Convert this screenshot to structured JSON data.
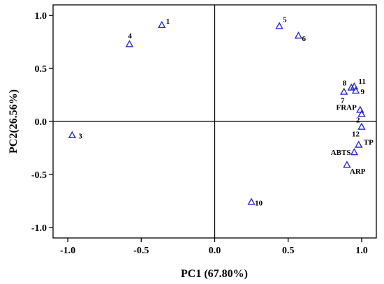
{
  "chart_data": {
    "type": "scatter",
    "xlabel": "PC1 (67.80%)",
    "ylabel": "PC2(26.56%)",
    "xlim": [
      -1.1,
      1.1
    ],
    "ylim": [
      -1.1,
      1.1
    ],
    "x_ticks": [
      {
        "value": -1.0,
        "label": "-1.0"
      },
      {
        "value": -0.5,
        "label": "-0.5"
      },
      {
        "value": 0.0,
        "label": "0.0"
      },
      {
        "value": 0.5,
        "label": "0.5"
      },
      {
        "value": 1.0,
        "label": "1.0"
      }
    ],
    "y_ticks": [
      {
        "value": 1.0,
        "label": "1.0"
      },
      {
        "value": 0.5,
        "label": "0.5"
      },
      {
        "value": 0.0,
        "label": "0.0"
      },
      {
        "value": -0.5,
        "label": "-0.5"
      },
      {
        "value": -1.0,
        "label": "-1.0"
      }
    ],
    "zero_lines": true,
    "grid": false,
    "marker": "open-triangle",
    "marker_color": "#2a2adb",
    "points": [
      {
        "label": "1",
        "x": -0.36,
        "y": 0.91
      },
      {
        "label": "2",
        "x": 1.0,
        "y": 0.07
      },
      {
        "label": "3",
        "x": -0.97,
        "y": -0.13
      },
      {
        "label": "4",
        "x": -0.58,
        "y": 0.73
      },
      {
        "label": "5",
        "x": 0.44,
        "y": 0.9
      },
      {
        "label": "6",
        "x": 0.57,
        "y": 0.81
      },
      {
        "label": "7",
        "x": 0.88,
        "y": 0.28
      },
      {
        "label": "8",
        "x": 0.93,
        "y": 0.32
      },
      {
        "label": "9",
        "x": 0.96,
        "y": 0.29
      },
      {
        "label": "10",
        "x": 0.25,
        "y": -0.76
      },
      {
        "label": "11",
        "x": 0.95,
        "y": 0.33
      },
      {
        "label": "12",
        "x": 1.0,
        "y": -0.05
      },
      {
        "label": "FRAP",
        "x": 0.99,
        "y": 0.11
      },
      {
        "label": "TP",
        "x": 0.98,
        "y": -0.22
      },
      {
        "label": "ABTS",
        "x": 0.95,
        "y": -0.29
      },
      {
        "label": "ARP",
        "x": 0.9,
        "y": -0.41
      }
    ]
  }
}
